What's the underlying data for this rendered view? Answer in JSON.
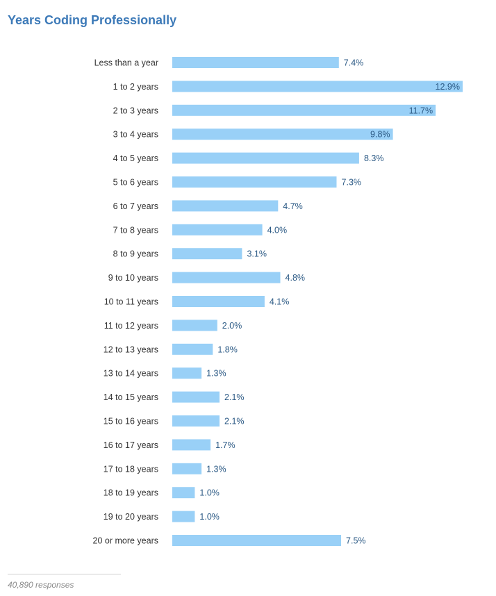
{
  "colors": {
    "title": "#3d7ab8",
    "bar": "#99d0f7",
    "value_label": "#2c5a85",
    "category_label": "#333333"
  },
  "footer": {
    "responses": "40,890 responses"
  },
  "chart_data": {
    "type": "bar",
    "orientation": "horizontal",
    "title": "Years Coding Professionally",
    "categories": [
      "Less than a year",
      "1 to 2 years",
      "2 to 3 years",
      "3 to 4 years",
      "4 to 5 years",
      "5 to 6 years",
      "6 to 7 years",
      "7 to 8 years",
      "8 to 9 years",
      "9 to 10 years",
      "10 to 11 years",
      "11 to 12 years",
      "12 to 13 years",
      "13 to 14 years",
      "14 to 15 years",
      "15 to 16 years",
      "16 to 17 years",
      "17 to 18 years",
      "18 to 19 years",
      "19 to 20 years",
      "20 or more years"
    ],
    "values": [
      7.4,
      12.9,
      11.7,
      9.8,
      8.3,
      7.3,
      4.7,
      4.0,
      3.1,
      4.8,
      4.1,
      2.0,
      1.8,
      1.3,
      2.1,
      2.1,
      1.7,
      1.3,
      1.0,
      1.0,
      7.5
    ],
    "value_labels": [
      "7.4%",
      "12.9%",
      "11.7%",
      "9.8%",
      "8.3%",
      "7.3%",
      "4.7%",
      "4.0%",
      "3.1%",
      "4.8%",
      "4.1%",
      "2.0%",
      "1.8%",
      "1.3%",
      "2.1%",
      "2.1%",
      "1.7%",
      "1.3%",
      "1.0%",
      "1.0%",
      "7.5%"
    ],
    "unit": "%",
    "xlim": [
      0,
      12.9
    ],
    "grid": false,
    "legend": "none"
  }
}
